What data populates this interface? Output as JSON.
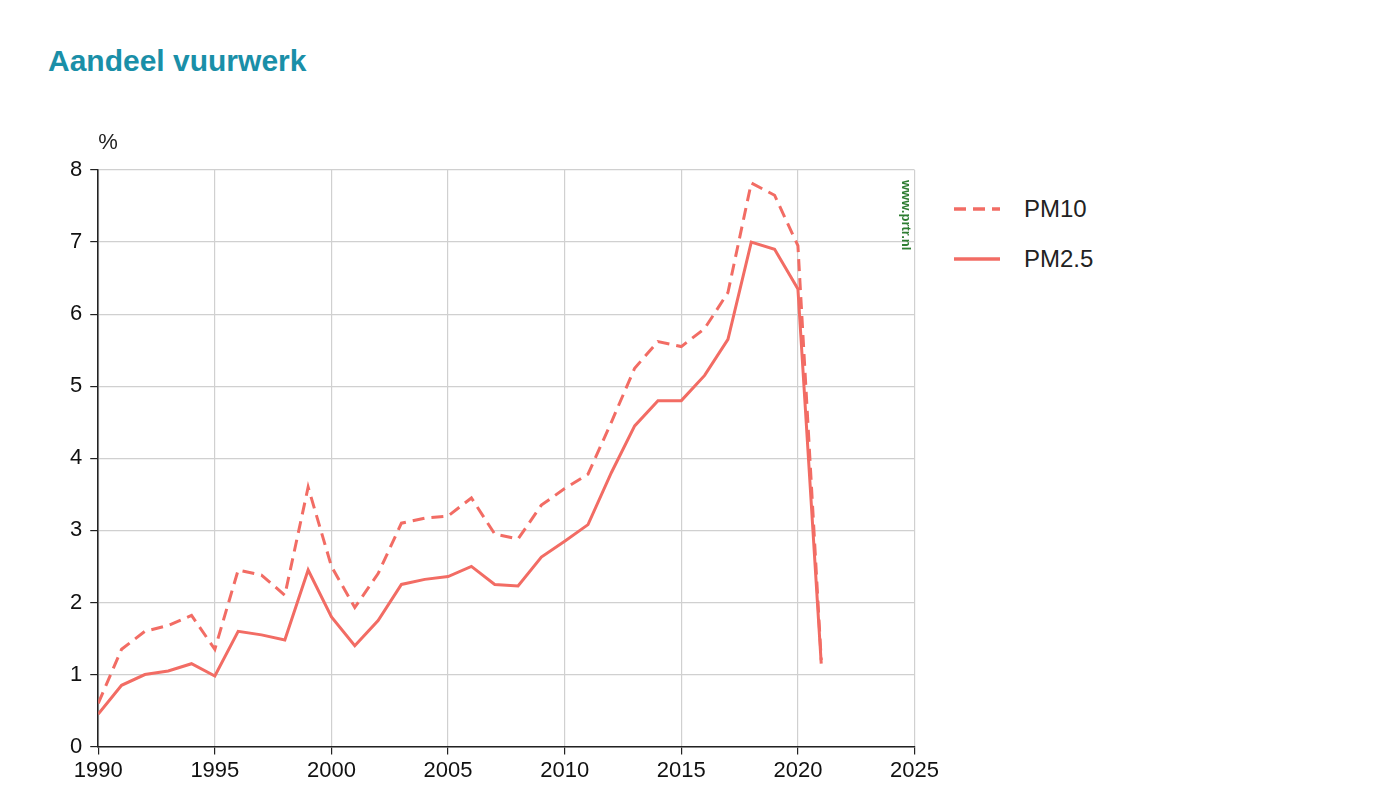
{
  "chart_data": {
    "type": "line",
    "title": "Aandeel vuurwerk",
    "y_label": "%",
    "watermark": "www.prtr.nl",
    "x": [
      1990,
      1991,
      1992,
      1993,
      1994,
      1995,
      1996,
      1997,
      1998,
      1999,
      2000,
      2001,
      2002,
      2003,
      2004,
      2005,
      2006,
      2007,
      2008,
      2009,
      2010,
      2011,
      2012,
      2013,
      2014,
      2015,
      2016,
      2017,
      2018,
      2019,
      2020,
      2021
    ],
    "series": [
      {
        "name": "PM10",
        "color": "#f26c64",
        "line_style": "dashed",
        "values": [
          0.6,
          1.35,
          1.6,
          1.68,
          1.82,
          1.35,
          2.45,
          2.38,
          2.1,
          3.6,
          2.5,
          1.93,
          2.4,
          3.1,
          3.17,
          3.2,
          3.45,
          2.95,
          2.88,
          3.35,
          3.58,
          3.78,
          4.5,
          5.25,
          5.62,
          5.55,
          5.8,
          6.3,
          7.82,
          7.65,
          6.95,
          1.2
        ]
      },
      {
        "name": "PM2.5",
        "color": "#f26c64",
        "line_style": "solid",
        "values": [
          0.45,
          0.85,
          1.0,
          1.05,
          1.15,
          0.98,
          1.6,
          1.55,
          1.48,
          2.45,
          1.8,
          1.4,
          1.75,
          2.25,
          2.32,
          2.36,
          2.5,
          2.25,
          2.23,
          2.63,
          2.85,
          3.08,
          3.8,
          4.45,
          4.8,
          4.8,
          5.15,
          5.65,
          7.0,
          6.9,
          6.35,
          1.15
        ]
      }
    ],
    "xlim": [
      1990,
      2025
    ],
    "xticks": [
      1990,
      1995,
      2000,
      2005,
      2010,
      2015,
      2020,
      2025
    ],
    "ylim": [
      0,
      8
    ],
    "yticks": [
      0,
      1,
      2,
      3,
      4,
      5,
      6,
      7,
      8
    ],
    "grid": true,
    "legend": "right"
  }
}
